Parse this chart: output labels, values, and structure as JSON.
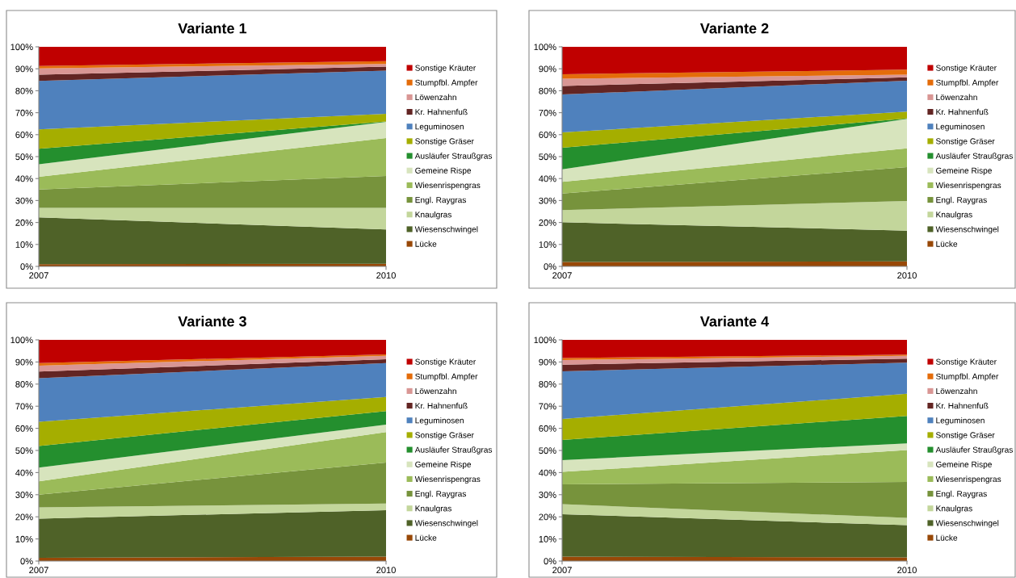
{
  "chart_data": [
    {
      "type": "area",
      "stacked": true,
      "title": "Variante 1",
      "categories": [
        "2007",
        "2010"
      ],
      "ylim": [
        0,
        100
      ],
      "yticks": [
        {
          "value": 0,
          "label": "0%"
        },
        {
          "value": 10,
          "label": "10%"
        },
        {
          "value": 20,
          "label": "20%"
        },
        {
          "value": 30,
          "label": "30%"
        },
        {
          "value": 40,
          "label": "40%"
        },
        {
          "value": 50,
          "label": "50%"
        },
        {
          "value": 60,
          "label": "60%"
        },
        {
          "value": 70,
          "label": "70%"
        },
        {
          "value": 80,
          "label": "80%"
        },
        {
          "value": 90,
          "label": "90%"
        },
        {
          "value": 100,
          "label": "100%"
        }
      ],
      "grid": false,
      "legend": "right",
      "series": [
        {
          "name": "Lücke",
          "color": "#984807",
          "values": [
            1,
            1.2
          ]
        },
        {
          "name": "Wiesenschwingel",
          "color": "#4f6228",
          "values": [
            21.3,
            15.6
          ]
        },
        {
          "name": "Knaulgras",
          "color": "#c3d69b",
          "values": [
            4.4,
            9.9
          ]
        },
        {
          "name": "Engl. Raygras",
          "color": "#77933c",
          "values": [
            8.3,
            14.5
          ]
        },
        {
          "name": "Wiesenrispengras",
          "color": "#9bbb59",
          "values": [
            5.8,
            17.3
          ]
        },
        {
          "name": "Gemeine Rispe",
          "color": "#d7e4bd",
          "values": [
            5.7,
            7.3
          ]
        },
        {
          "name": "Ausläufer Straußgras",
          "color": "#248f2e",
          "values": [
            7.1,
            0.2
          ]
        },
        {
          "name": "Sonstige Gräser",
          "color": "#a5ae00",
          "values": [
            8.8,
            3.5
          ]
        },
        {
          "name": "Leguminosen",
          "color": "#4f81bd",
          "values": [
            22.1,
            19.7
          ]
        },
        {
          "name": "Kr. Hahnenfuß",
          "color": "#632523",
          "values": [
            2.8,
            1.8
          ]
        },
        {
          "name": "Löwenzahn",
          "color": "#d99694",
          "values": [
            2.9,
            1.2
          ]
        },
        {
          "name": "Stumpfbl. Ampfer",
          "color": "#e46c0a",
          "values": [
            1.1,
            1.3
          ]
        },
        {
          "name": "Sonstige Kräuter",
          "color": "#c00000",
          "values": [
            8.7,
            6.5
          ]
        }
      ]
    },
    {
      "type": "area",
      "stacked": true,
      "title": "Variante 2",
      "categories": [
        "2007",
        "2010"
      ],
      "ylim": [
        0,
        100
      ],
      "yticks": [
        {
          "value": 0,
          "label": "0%"
        },
        {
          "value": 10,
          "label": "10%"
        },
        {
          "value": 20,
          "label": "20%"
        },
        {
          "value": 30,
          "label": "30%"
        },
        {
          "value": 40,
          "label": "40%"
        },
        {
          "value": 50,
          "label": "50%"
        },
        {
          "value": 60,
          "label": "60%"
        },
        {
          "value": 70,
          "label": "70%"
        },
        {
          "value": 80,
          "label": "80%"
        },
        {
          "value": 90,
          "label": "90%"
        },
        {
          "value": 100,
          "label": "100%"
        }
      ],
      "grid": false,
      "legend": "right",
      "series": [
        {
          "name": "Lücke",
          "color": "#984807",
          "values": [
            2,
            2.3
          ]
        },
        {
          "name": "Wiesenschwingel",
          "color": "#4f6228",
          "values": [
            18.1,
            14
          ]
        },
        {
          "name": "Knaulgras",
          "color": "#c3d69b",
          "values": [
            5.5,
            13.5
          ]
        },
        {
          "name": "Engl. Raygras",
          "color": "#77933c",
          "values": [
            7.6,
            15.4
          ]
        },
        {
          "name": "Wiesenrispengras",
          "color": "#9bbb59",
          "values": [
            5.3,
            8.6
          ]
        },
        {
          "name": "Gemeine Rispe",
          "color": "#d7e4bd",
          "values": [
            5.7,
            13.4
          ]
        },
        {
          "name": "Ausläufer Straußgras",
          "color": "#248f2e",
          "values": [
            9.8,
            0.2
          ]
        },
        {
          "name": "Sonstige Gräser",
          "color": "#a5ae00",
          "values": [
            7,
            3.1
          ]
        },
        {
          "name": "Leguminosen",
          "color": "#4f81bd",
          "values": [
            17.3,
            14.1
          ]
        },
        {
          "name": "Kr. Hahnenfuß",
          "color": "#632523",
          "values": [
            3.9,
            1.5
          ]
        },
        {
          "name": "Löwenzahn",
          "color": "#d99694",
          "values": [
            3.3,
            1.2
          ]
        },
        {
          "name": "Stumpfbl. Ampfer",
          "color": "#e46c0a",
          "values": [
            2,
            2.3
          ]
        },
        {
          "name": "Sonstige Kräuter",
          "color": "#c00000",
          "values": [
            12.5,
            10.4
          ]
        }
      ]
    },
    {
      "type": "area",
      "stacked": true,
      "title": "Variante 3",
      "categories": [
        "2007",
        "2010"
      ],
      "ylim": [
        0,
        100
      ],
      "yticks": [
        {
          "value": 0,
          "label": "0%"
        },
        {
          "value": 10,
          "label": "10%"
        },
        {
          "value": 20,
          "label": "20%"
        },
        {
          "value": 30,
          "label": "30%"
        },
        {
          "value": 40,
          "label": "40%"
        },
        {
          "value": 50,
          "label": "50%"
        },
        {
          "value": 60,
          "label": "60%"
        },
        {
          "value": 70,
          "label": "70%"
        },
        {
          "value": 80,
          "label": "80%"
        },
        {
          "value": 90,
          "label": "90%"
        },
        {
          "value": 100,
          "label": "100%"
        }
      ],
      "grid": false,
      "legend": "right",
      "series": [
        {
          "name": "Lücke",
          "color": "#984807",
          "values": [
            1.5,
            2
          ]
        },
        {
          "name": "Wiesenschwingel",
          "color": "#4f6228",
          "values": [
            17.7,
            21
          ]
        },
        {
          "name": "Knaulgras",
          "color": "#c3d69b",
          "values": [
            5.1,
            3
          ]
        },
        {
          "name": "Engl. Raygras",
          "color": "#77933c",
          "values": [
            5.7,
            18.5
          ]
        },
        {
          "name": "Wiesenrispengras",
          "color": "#9bbb59",
          "values": [
            6,
            13.8
          ]
        },
        {
          "name": "Gemeine Rispe",
          "color": "#d7e4bd",
          "values": [
            6.2,
            3.4
          ]
        },
        {
          "name": "Ausläufer Straußgras",
          "color": "#248f2e",
          "values": [
            9.8,
            6.1
          ]
        },
        {
          "name": "Sonstige Gräser",
          "color": "#a5ae00",
          "values": [
            11,
            6.4
          ]
        },
        {
          "name": "Leguminosen",
          "color": "#4f81bd",
          "values": [
            19.7,
            15.3
          ]
        },
        {
          "name": "Kr. Hahnenfuß",
          "color": "#632523",
          "values": [
            3,
            1.7
          ]
        },
        {
          "name": "Löwenzahn",
          "color": "#d99694",
          "values": [
            2.6,
            1.6
          ]
        },
        {
          "name": "Stumpfbl. Ampfer",
          "color": "#e46c0a",
          "values": [
            1.2,
            0.6
          ]
        },
        {
          "name": "Sonstige Kräuter",
          "color": "#c00000",
          "values": [
            10.5,
            6.6
          ]
        }
      ]
    },
    {
      "type": "area",
      "stacked": true,
      "title": "Variante 4",
      "categories": [
        "2007",
        "2010"
      ],
      "ylim": [
        0,
        100
      ],
      "yticks": [
        {
          "value": 0,
          "label": "0%"
        },
        {
          "value": 10,
          "label": "10%"
        },
        {
          "value": 20,
          "label": "20%"
        },
        {
          "value": 30,
          "label": "30%"
        },
        {
          "value": 40,
          "label": "40%"
        },
        {
          "value": 50,
          "label": "50%"
        },
        {
          "value": 60,
          "label": "60%"
        },
        {
          "value": 70,
          "label": "70%"
        },
        {
          "value": 80,
          "label": "80%"
        },
        {
          "value": 90,
          "label": "90%"
        },
        {
          "value": 100,
          "label": "100%"
        }
      ],
      "grid": false,
      "legend": "right",
      "series": [
        {
          "name": "Lücke",
          "color": "#984807",
          "values": [
            2,
            1.6
          ]
        },
        {
          "name": "Wiesenschwingel",
          "color": "#4f6228",
          "values": [
            19.2,
            14.6
          ]
        },
        {
          "name": "Knaulgras",
          "color": "#c3d69b",
          "values": [
            4.5,
            3.3
          ]
        },
        {
          "name": "Engl. Raygras",
          "color": "#77933c",
          "values": [
            9,
            16.3
          ]
        },
        {
          "name": "Wiesenrispengras",
          "color": "#9bbb59",
          "values": [
            5.6,
            14.4
          ]
        },
        {
          "name": "Gemeine Rispe",
          "color": "#d7e4bd",
          "values": [
            5.3,
            3
          ]
        },
        {
          "name": "Ausläufer Straußgras",
          "color": "#248f2e",
          "values": [
            9.1,
            12.4
          ]
        },
        {
          "name": "Sonstige Gräser",
          "color": "#a5ae00",
          "values": [
            9.5,
            10
          ]
        },
        {
          "name": "Leguminosen",
          "color": "#4f81bd",
          "values": [
            21.6,
            14.1
          ]
        },
        {
          "name": "Kr. Hahnenfuß",
          "color": "#632523",
          "values": [
            3,
            1.8
          ]
        },
        {
          "name": "Löwenzahn",
          "color": "#d99694",
          "values": [
            2.1,
            1.3
          ]
        },
        {
          "name": "Stumpfbl. Ampfer",
          "color": "#e46c0a",
          "values": [
            0.9,
            0.5
          ]
        },
        {
          "name": "Sonstige Kräuter",
          "color": "#c00000",
          "values": [
            8.2,
            6.7
          ]
        }
      ]
    }
  ]
}
